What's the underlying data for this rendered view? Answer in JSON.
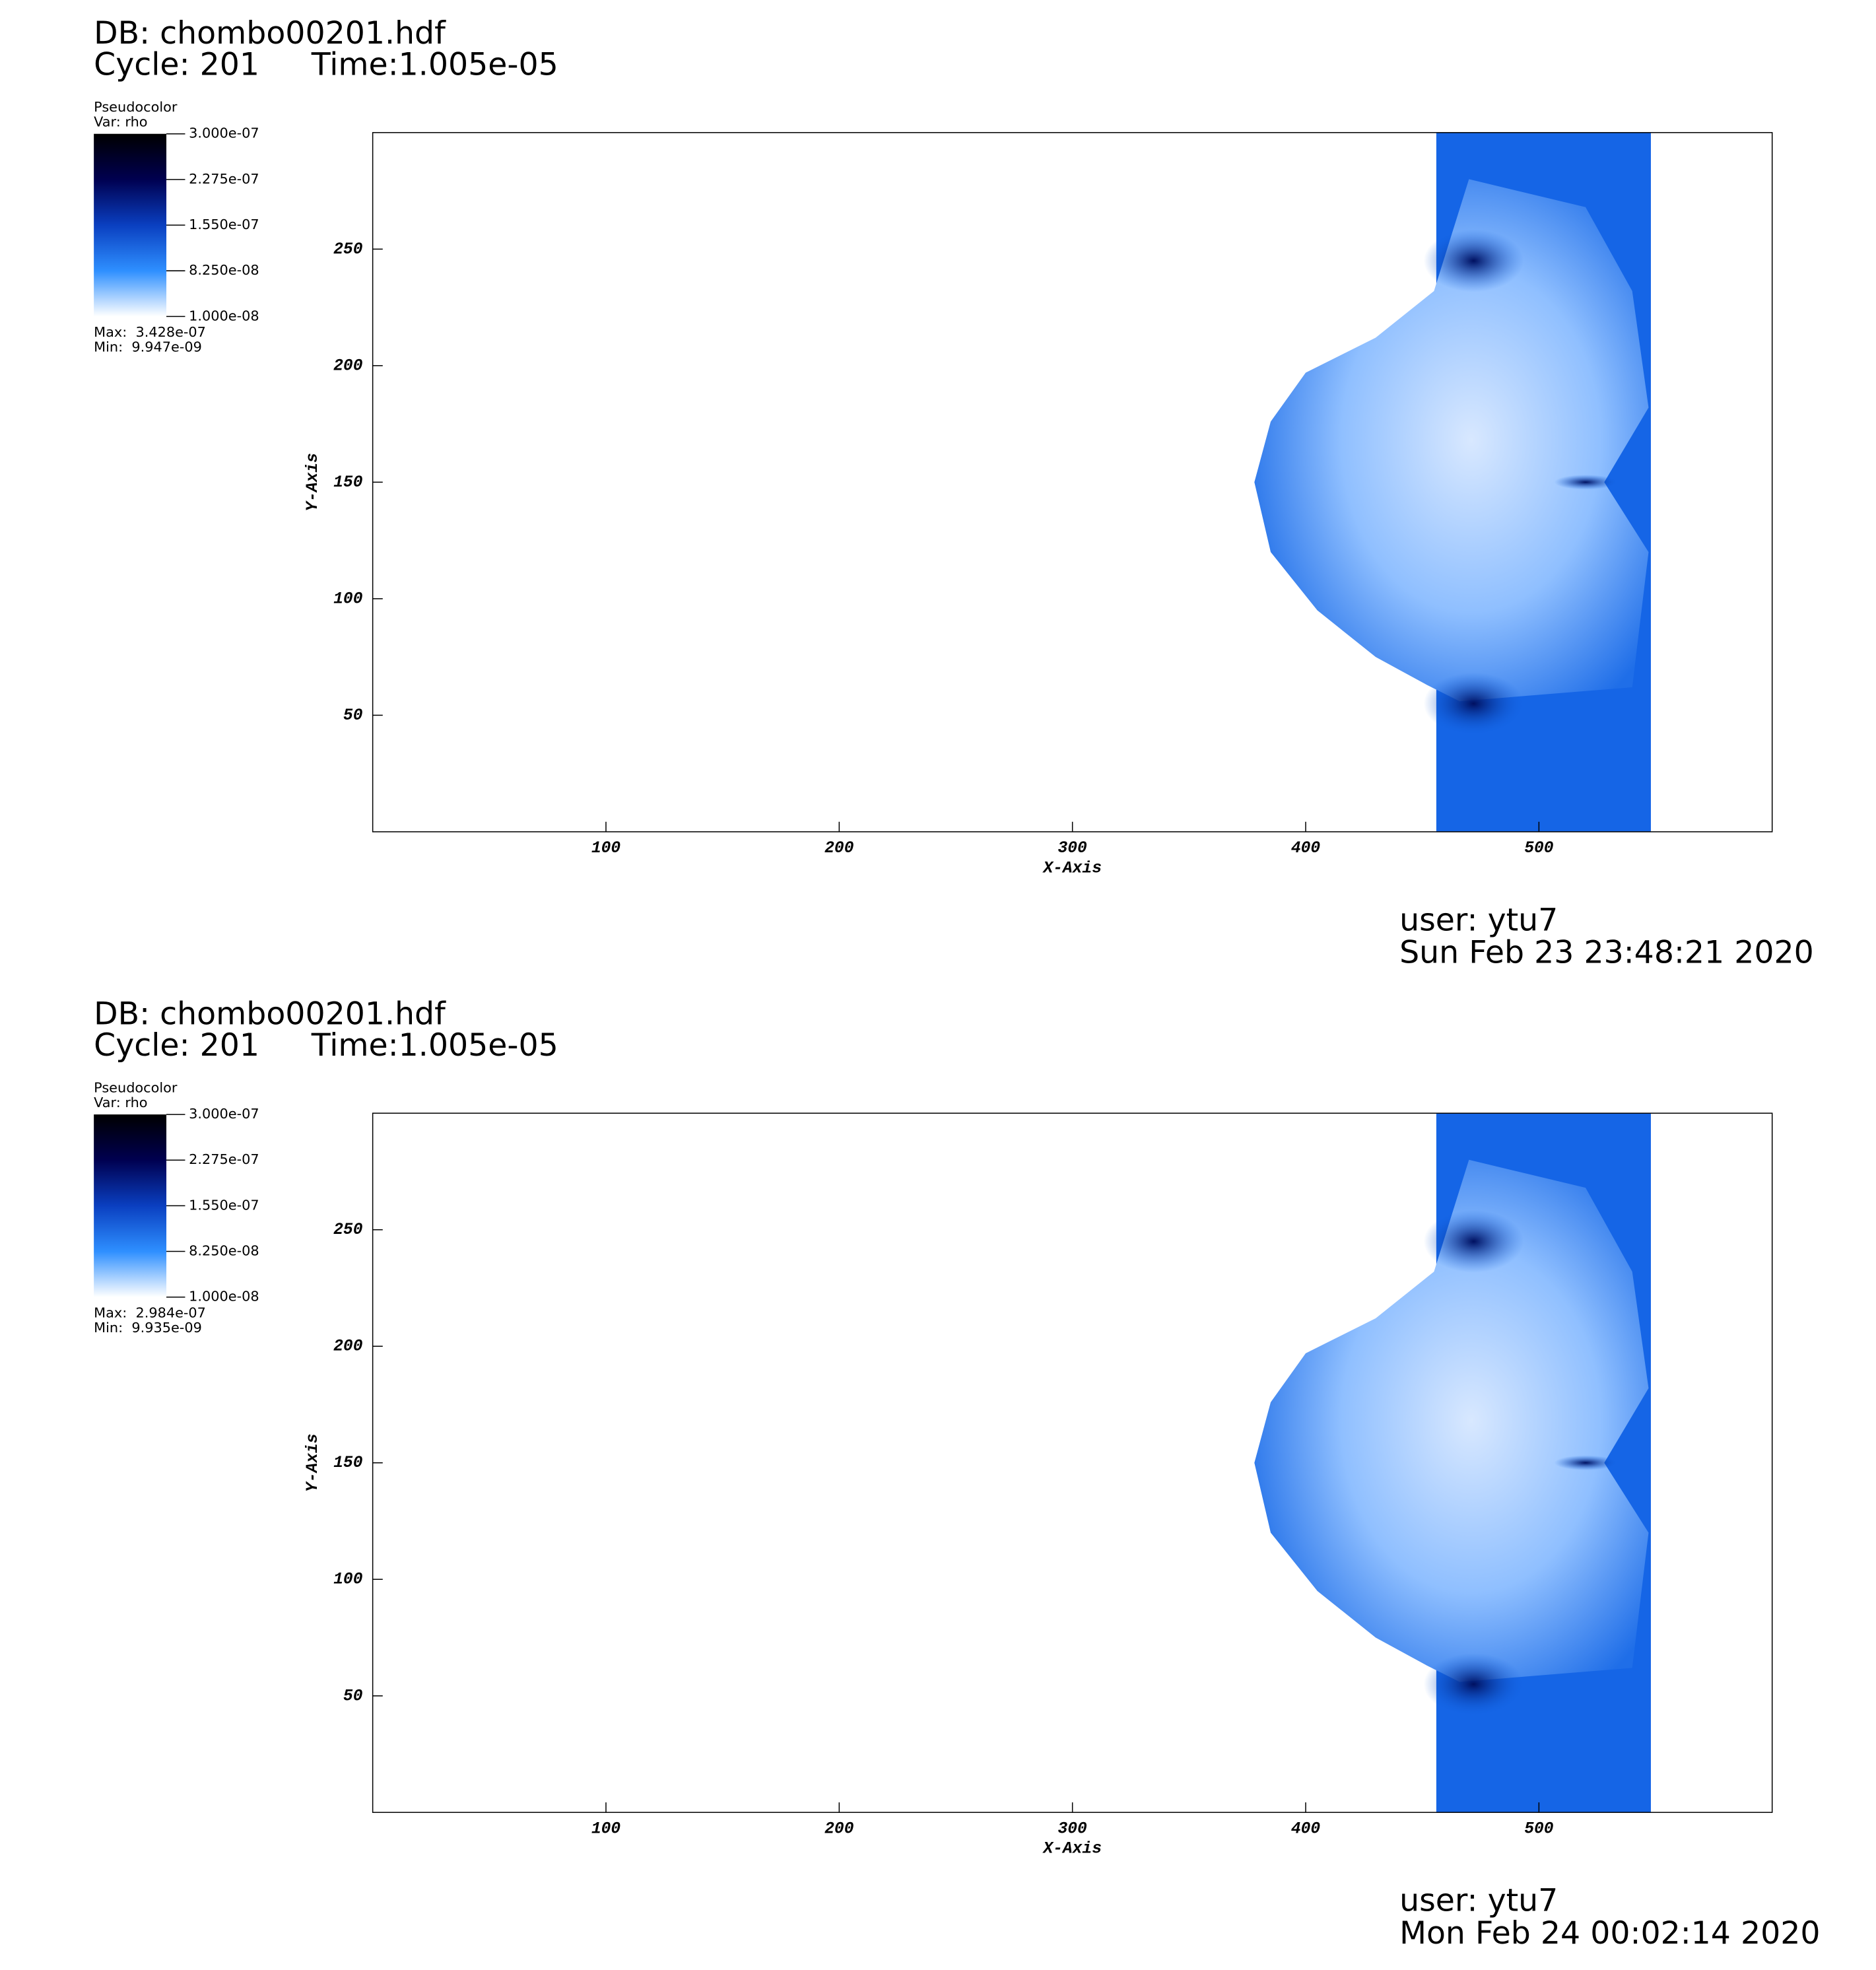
{
  "chart_data": [
    {
      "type": "pseudocolor",
      "db": "DB: chombo00201.hdf",
      "cycle": "Cycle: 201",
      "time": "Time:1.005e-05",
      "legend_title": "Pseudocolor",
      "legend_var": "Var: rho",
      "colorbar_lim": [
        1e-08,
        3e-07
      ],
      "colorbar_ticks": [
        {
          "value": 3e-07,
          "label": "3.000e-07"
        },
        {
          "value": 2.275e-07,
          "label": "2.275e-07"
        },
        {
          "value": 1.55e-07,
          "label": "1.550e-07"
        },
        {
          "value": 8.25e-08,
          "label": "8.250e-08"
        },
        {
          "value": 1e-08,
          "label": "1.000e-08"
        }
      ],
      "colormap": [
        "#ffffff",
        "#2e8fff",
        "#0a3fc0",
        "#000050",
        "#000000"
      ],
      "max": "Max:  3.428e-07",
      "min": "Min:  9.947e-09",
      "xlabel": "X-Axis",
      "ylabel": "Y-Axis",
      "xlim": [
        0,
        600
      ],
      "ylim": [
        0,
        300
      ],
      "xticks": [
        100,
        200,
        300,
        400,
        500
      ],
      "yticks": [
        50,
        100,
        150,
        200,
        250
      ],
      "user": "user: ytu7",
      "date": "Sun Feb 23 23:48:21 2020"
    },
    {
      "type": "pseudocolor",
      "db": "DB: chombo00201.hdf",
      "cycle": "Cycle: 201",
      "time": "Time:1.005e-05",
      "legend_title": "Pseudocolor",
      "legend_var": "Var: rho",
      "colorbar_lim": [
        1e-08,
        3e-07
      ],
      "colorbar_ticks": [
        {
          "value": 3e-07,
          "label": "3.000e-07"
        },
        {
          "value": 2.275e-07,
          "label": "2.275e-07"
        },
        {
          "value": 1.55e-07,
          "label": "1.550e-07"
        },
        {
          "value": 8.25e-08,
          "label": "8.250e-08"
        },
        {
          "value": 1e-08,
          "label": "1.000e-08"
        }
      ],
      "colormap": [
        "#ffffff",
        "#2e8fff",
        "#0a3fc0",
        "#000050",
        "#000000"
      ],
      "max": "Max:  2.984e-07",
      "min": "Min:  9.935e-09",
      "xlabel": "X-Axis",
      "ylabel": "Y-Axis",
      "xlim": [
        0,
        600
      ],
      "ylim": [
        0,
        300
      ],
      "xticks": [
        100,
        200,
        300,
        400,
        500
      ],
      "yticks": [
        50,
        100,
        150,
        200,
        250
      ],
      "user": "user: ytu7",
      "date": "Mon Feb 24 00:02:14 2020"
    }
  ]
}
